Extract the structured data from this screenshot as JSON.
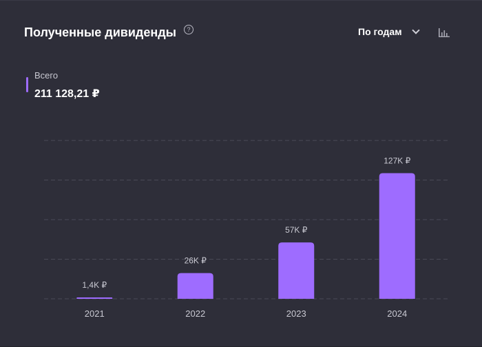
{
  "header": {
    "title": "Полученные дивиденды",
    "help_icon": "question-circle-icon",
    "period_select": "По годам",
    "chart_toggle_icon": "bar-chart-icon"
  },
  "summary": {
    "label": "Всего",
    "value": "211 128,21 ₽",
    "marker_color": "#9e6cff"
  },
  "chart_data": {
    "type": "bar",
    "title": "Полученные дивиденды",
    "categories": [
      "2021",
      "2022",
      "2023",
      "2024"
    ],
    "values": [
      1400,
      26000,
      57000,
      127000
    ],
    "value_labels": [
      "1,4K ₽",
      "26K ₽",
      "57K ₽",
      "127K ₽"
    ],
    "ylim": [
      0,
      160000
    ],
    "grid": true,
    "bar_color": "#9e6cff"
  }
}
